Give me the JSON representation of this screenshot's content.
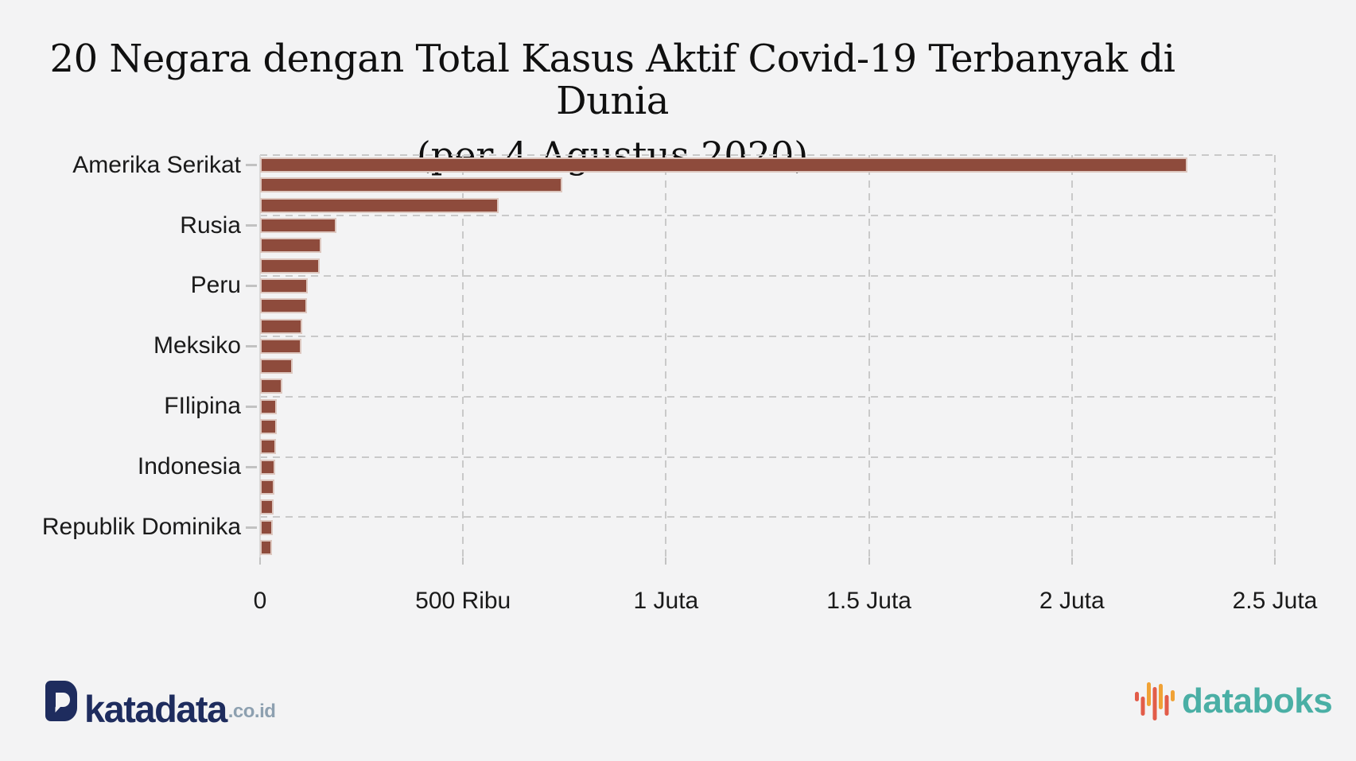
{
  "title": {
    "line1": "20 Negara dengan Total Kasus Aktif Covid-19 Terbanyak di Dunia",
    "line2": "(per 4 Agustus 2020)"
  },
  "chart_data": {
    "type": "bar",
    "orientation": "horizontal",
    "title": "20 Negara dengan Total Kasus Aktif Covid-19 Terbanyak di Dunia",
    "subtitle": "(per 4 Agustus 2020)",
    "categories": [
      "Amerika Serikat",
      "",
      "",
      "Rusia",
      "",
      "",
      "Peru",
      "",
      "",
      "Meksiko",
      "",
      "",
      "FIlipina",
      "",
      "",
      "Indonesia",
      "",
      "",
      "Republik Dominika",
      ""
    ],
    "values": [
      2285000,
      744000,
      587000,
      189000,
      151000,
      147000,
      118000,
      116000,
      104000,
      102000,
      80000,
      55000,
      42000,
      41000,
      39000,
      37000,
      36000,
      34000,
      32000,
      30000
    ],
    "xlim": [
      0,
      2500000
    ],
    "x_ticks": [
      {
        "value": 0,
        "label": "0"
      },
      {
        "value": 500000,
        "label": "500 Ribu"
      },
      {
        "value": 1000000,
        "label": "1 Juta"
      },
      {
        "value": 1500000,
        "label": "1.5 Juta"
      },
      {
        "value": 2000000,
        "label": "2 Juta"
      },
      {
        "value": 2500000,
        "label": "2.5 Juta"
      }
    ],
    "grid": "dashed",
    "legend": "none",
    "y_label_every_n_bars": 3,
    "colors": {
      "bar": "#8e4b3c",
      "bar_border": "#ddc7bf",
      "grid": "#c9c9c9",
      "axis": "#d9d9d9",
      "tick": "#c2c2c2",
      "text": "#1a1a1a",
      "background": "#f3f3f4"
    }
  },
  "footer": {
    "katadata": {
      "icon": "katadata-d-icon",
      "wordmark": "katadata",
      "suffix": ".co.id",
      "navy": "#1e2c5e",
      "suffix_color": "#8da0b0"
    },
    "databoks": {
      "icon": "databoks-bars-icon",
      "wordmark": "databoks",
      "teal": "#4aafa5",
      "orange": "#f0a236",
      "coral": "#e25c49"
    }
  }
}
